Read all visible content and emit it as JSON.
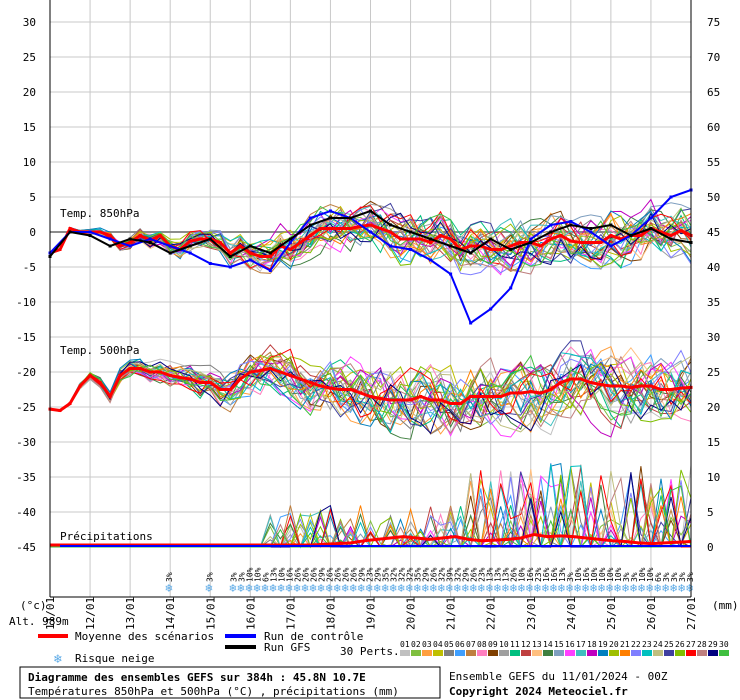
{
  "chart_data": {
    "type": "line",
    "left_axis": {
      "ticks": [
        30,
        25,
        20,
        15,
        10,
        5,
        0,
        -5,
        -10,
        -15,
        -20,
        -25,
        -30,
        -35,
        -40,
        -45
      ],
      "unit_label": "(°c)"
    },
    "right_axis": {
      "ticks": [
        75,
        70,
        65,
        60,
        55,
        50,
        45,
        40,
        35,
        30,
        25,
        20,
        15,
        10,
        5,
        0
      ],
      "unit_label": "(mm)"
    },
    "x_axis": {
      "ticks": [
        "11/01",
        "12/01",
        "13/01",
        "14/01",
        "15/01",
        "16/01",
        "17/01",
        "18/01",
        "19/01",
        "20/01",
        "21/01",
        "22/01",
        "23/01",
        "24/01",
        "25/01",
        "26/01",
        "27/01"
      ]
    },
    "alt_label": "Alt. 989m",
    "labels": {
      "temp850": "Temp. 850hPa",
      "temp500": "Temp. 500hPa",
      "precip": "Précipitations"
    },
    "series": [
      {
        "name": "Moyenne des scénarios (850hPa)",
        "color": "#ff0000",
        "x_hours": [
          0,
          6,
          12,
          18,
          24,
          30,
          36,
          42,
          48,
          54,
          60,
          66,
          72,
          78,
          84,
          90,
          96,
          102,
          108,
          114,
          120,
          126,
          132,
          138,
          144,
          150,
          156,
          162,
          168,
          174,
          180,
          186,
          192,
          198,
          204,
          210,
          216,
          222,
          228,
          234,
          240,
          246,
          252,
          258,
          264,
          270,
          276,
          282,
          288,
          294,
          300,
          306,
          312,
          318,
          324,
          330,
          336,
          342,
          348,
          354,
          360,
          366,
          372,
          378,
          384
        ],
        "values": [
          -3,
          -2.5,
          0.5,
          0,
          0,
          0,
          -0.5,
          -2,
          -1.5,
          -0.5,
          -1.2,
          -0.5,
          -2,
          -2.5,
          -1.3,
          -1,
          -1,
          -1.5,
          -3,
          -2,
          -3,
          -3.5,
          -3.5,
          -2,
          -2.5,
          -1.5,
          -0.5,
          0.5,
          0.5,
          0.5,
          0.5,
          0.8,
          1,
          0.5,
          0,
          -1,
          -1,
          -1,
          -1.5,
          -0.5,
          -1,
          -2.5,
          -2,
          -2,
          -2.5,
          -2.5,
          -2,
          -1.5,
          -1.5,
          -2,
          -1,
          -0.5,
          -1.3,
          -1.5,
          -1.5,
          -1.5,
          -0.5,
          -1,
          -0.5,
          -0.5,
          0.5,
          0,
          -0.5,
          0.2,
          -0.5
        ]
      },
      {
        "name": "Moyenne des scénarios (500hPa)",
        "color": "#ff0000",
        "x_hours": [
          0,
          6,
          12,
          18,
          24,
          30,
          36,
          42,
          48,
          54,
          60,
          66,
          72,
          78,
          84,
          90,
          96,
          102,
          108,
          114,
          120,
          126,
          132,
          138,
          144,
          150,
          156,
          162,
          168,
          174,
          180,
          186,
          192,
          198,
          204,
          210,
          216,
          222,
          228,
          234,
          240,
          246,
          252,
          258,
          264,
          270,
          276,
          282,
          288,
          294,
          300,
          306,
          312,
          318,
          324,
          330,
          336,
          342,
          348,
          354,
          360,
          366,
          372,
          378,
          384
        ],
        "values": [
          -25.3,
          -25.5,
          -24.5,
          -22,
          -20.5,
          -21.5,
          -23.5,
          -20.5,
          -19.5,
          -19.5,
          -20,
          -20,
          -20.5,
          -20.8,
          -21,
          -21.5,
          -21.5,
          -22.5,
          -22.5,
          -21,
          -20,
          -19.8,
          -19.5,
          -20,
          -20.5,
          -21,
          -21.5,
          -22,
          -22.3,
          -22.5,
          -22.5,
          -23,
          -23.5,
          -23.8,
          -24,
          -24,
          -24,
          -23.5,
          -24,
          -24,
          -24.5,
          -24.5,
          -23.5,
          -23.5,
          -23.5,
          -23.5,
          -23,
          -23,
          -22.8,
          -23,
          -22.5,
          -21.5,
          -21,
          -21,
          -21.5,
          -21.8,
          -22,
          -22,
          -22.2,
          -22,
          -22,
          -22.5,
          -22.5,
          -22.3,
          -22.2
        ]
      },
      {
        "name": "Run de contrôle",
        "color": "#0000ff",
        "x_hours": [
          0,
          12,
          24,
          36,
          48,
          60,
          72,
          84,
          96,
          108,
          120,
          132,
          144,
          156,
          168,
          180,
          192,
          204,
          216,
          228,
          240,
          252,
          264,
          276,
          288,
          300,
          312,
          324,
          336,
          348,
          360,
          372,
          384
        ],
        "values": [
          -3,
          0,
          0,
          -1,
          -2,
          -1,
          -2,
          -3,
          -4.5,
          -5,
          -4,
          -5.5,
          -1.5,
          2,
          3,
          2,
          0,
          -2,
          -2.5,
          -4,
          -6,
          -13,
          -11,
          -8,
          -1,
          1,
          1.5,
          0,
          -2,
          -0.5,
          2,
          5,
          6
        ]
      },
      {
        "name": "Run GFS",
        "color": "#000000",
        "x_hours": [
          0,
          12,
          24,
          36,
          48,
          60,
          72,
          84,
          96,
          108,
          120,
          132,
          144,
          156,
          168,
          180,
          192,
          204,
          216,
          228,
          240,
          252,
          264,
          276,
          288,
          300,
          312,
          324,
          336,
          348,
          360,
          372,
          384
        ],
        "values": [
          -3.5,
          0,
          -0.5,
          -2,
          -1,
          -1.5,
          -3,
          -2,
          -1,
          -3.5,
          -2,
          -3,
          -1,
          1,
          2,
          2,
          3,
          1,
          0,
          -1,
          -2,
          -3,
          -1,
          -2.5,
          -1.5,
          0,
          1,
          0.5,
          1,
          -0.5,
          0.5,
          -1,
          -1.5
        ]
      }
    ],
    "precip_mean_mm": [
      0,
      0,
      0,
      0,
      0,
      0,
      0,
      0,
      0,
      0,
      0,
      0,
      0,
      0,
      0,
      0,
      0,
      0,
      0,
      0,
      0,
      0.1,
      0.2,
      0.3,
      0.6,
      0.8,
      1.0,
      1.2,
      1.0,
      0.8,
      1.0,
      1.2,
      0.8,
      0.6,
      0.7,
      0.8,
      1.0,
      1.5,
      1.2,
      1.3,
      1.2,
      1.0,
      0.8,
      0.6,
      0.5,
      0.3,
      0.2,
      0.3,
      0.4,
      0.5
    ],
    "snow_risk": {
      "ticks_x_days": [
        3.0,
        4.0,
        4.6,
        4.8,
        5.0,
        5.2,
        5.4,
        5.6,
        5.8,
        6.0,
        6.2,
        6.4,
        6.6,
        6.8,
        7.0,
        7.2,
        7.4,
        7.6,
        7.8,
        8.0,
        8.2,
        8.4,
        8.6,
        8.8,
        9.0,
        9.2,
        9.4,
        9.6,
        9.8,
        10.0,
        10.2,
        10.4,
        10.6,
        10.8,
        11.0,
        11.2,
        11.4,
        11.6,
        11.8,
        12.0,
        12.2,
        12.4,
        12.6,
        12.8,
        13.0,
        13.2,
        13.4,
        13.6,
        13.8,
        14.0,
        14.2,
        14.4,
        14.6,
        14.8,
        15.0,
        15.2,
        15.4,
        15.6,
        15.8,
        16.0
      ],
      "labels": [
        "3%",
        "3%",
        "3%",
        "3%",
        "10%",
        "10%",
        "6%",
        "13%",
        "10%",
        "16%",
        "26%",
        "26%",
        "26%",
        "29%",
        "26%",
        "26%",
        "26%",
        "26%",
        "29%",
        "23%",
        "29%",
        "35%",
        "32%",
        "32%",
        "32%",
        "35%",
        "29%",
        "26%",
        "32%",
        "39%",
        "32%",
        "29%",
        "26%",
        "23%",
        "13%",
        "13%",
        "13%",
        "26%",
        "10%",
        "16%",
        "23%",
        "16%",
        "16%",
        "13%",
        "3%",
        "10%",
        "16%",
        "10%",
        "10%",
        "10%",
        "10%",
        "3%",
        "3%",
        "10%",
        "10%",
        "6%",
        "3%",
        "3%",
        "3%",
        "3%"
      ]
    },
    "legend": {
      "mean": "Moyenne des scénarios",
      "control": "Run de contrôle",
      "gfs": "Run GFS",
      "snow": "Risque neige",
      "perts_label": "30 Perts.",
      "perts": [
        "01",
        "02",
        "03",
        "04",
        "05",
        "06",
        "07",
        "08",
        "09",
        "10",
        "11",
        "12",
        "13",
        "14",
        "15",
        "16",
        "17",
        "18",
        "19",
        "20",
        "21",
        "22",
        "23",
        "24",
        "25",
        "26",
        "27",
        "28",
        "29",
        "30"
      ],
      "pert_colors": [
        "#c0c0c0",
        "#7fbf3f",
        "#ff9f3f",
        "#bfbf00",
        "#7f7f7f",
        "#3f9fff",
        "#bf7f3f",
        "#ff7fbf",
        "#7f3f00",
        "#9f9f9f",
        "#00bf7f",
        "#bf3f3f",
        "#ffbf7f",
        "#3f7f3f",
        "#7f9fbf",
        "#ff3fff",
        "#3fbfbf",
        "#bf00bf",
        "#007fbf",
        "#9fbf00",
        "#ff7f00",
        "#7f7fff",
        "#00bfbf",
        "#bfbf7f",
        "#3f3f9f",
        "#7fbf00",
        "#ff0000",
        "#bf7f7f",
        "#00007f",
        "#3fbf3f"
      ]
    },
    "footer": {
      "title": "Diagramme des ensembles GEFS sur 384h : 45.8N 10.7E",
      "subtitle": "Températures 850hPa et 500hPa (°C) , précipitations (mm)",
      "run": "Ensemble GEFS du 11/01/2024 - 00Z",
      "copyright": "Copyright 2024 Meteociel.fr"
    },
    "grid": true,
    "ylim": [
      -45,
      30
    ],
    "ylim_right": [
      0,
      75
    ]
  }
}
